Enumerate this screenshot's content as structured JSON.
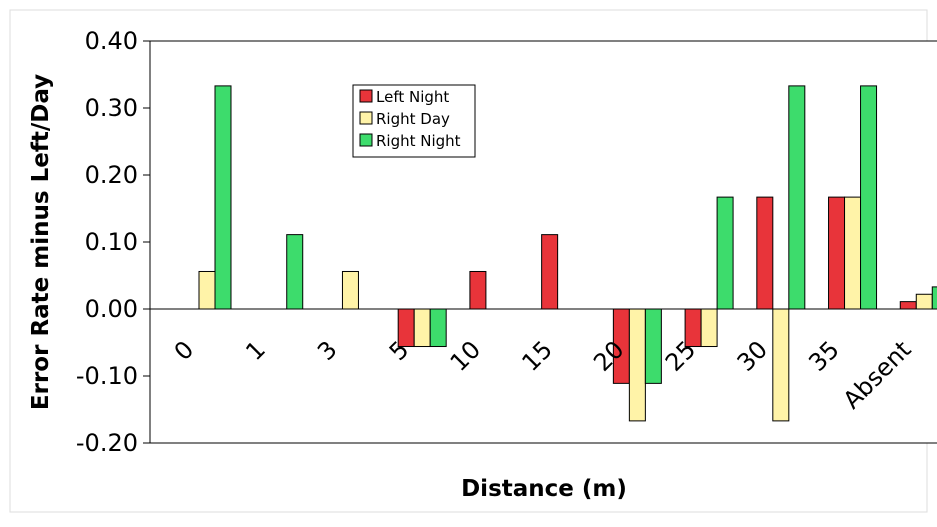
{
  "chart_data": {
    "type": "bar",
    "title": "",
    "xlabel": "Distance (m)",
    "ylabel": "Error Rate minus Left/Day",
    "categories": [
      "0",
      "1",
      "3",
      "5",
      "10",
      "15",
      "20",
      "25",
      "30",
      "35",
      "Absent"
    ],
    "series": [
      {
        "name": "Left Night",
        "color": "#e8343a",
        "values": [
          0,
          0,
          0,
          -0.056,
          0.056,
          0.111,
          -0.111,
          -0.056,
          0.167,
          0.167,
          0.011
        ]
      },
      {
        "name": "Right Day",
        "color": "#fff3a8",
        "values": [
          0.056,
          0,
          0.056,
          -0.056,
          0,
          0,
          -0.167,
          -0.056,
          -0.167,
          0.167,
          0.022
        ]
      },
      {
        "name": "Right Night",
        "color": "#3ddc6c",
        "values": [
          0.333,
          0.111,
          0,
          -0.056,
          0,
          0,
          -0.111,
          0.167,
          0.333,
          0.333,
          0.033
        ]
      }
    ],
    "ylim": [
      -0.2,
      0.4
    ],
    "yticks": [
      "0.40",
      "0.30",
      "0.20",
      "0.10",
      "0.00",
      "-0.10",
      "-0.20"
    ],
    "ytick_values": [
      0.4,
      0.3,
      0.2,
      0.1,
      0,
      -0.1,
      -0.2
    ],
    "grid": false,
    "legend_position": "top-center"
  }
}
